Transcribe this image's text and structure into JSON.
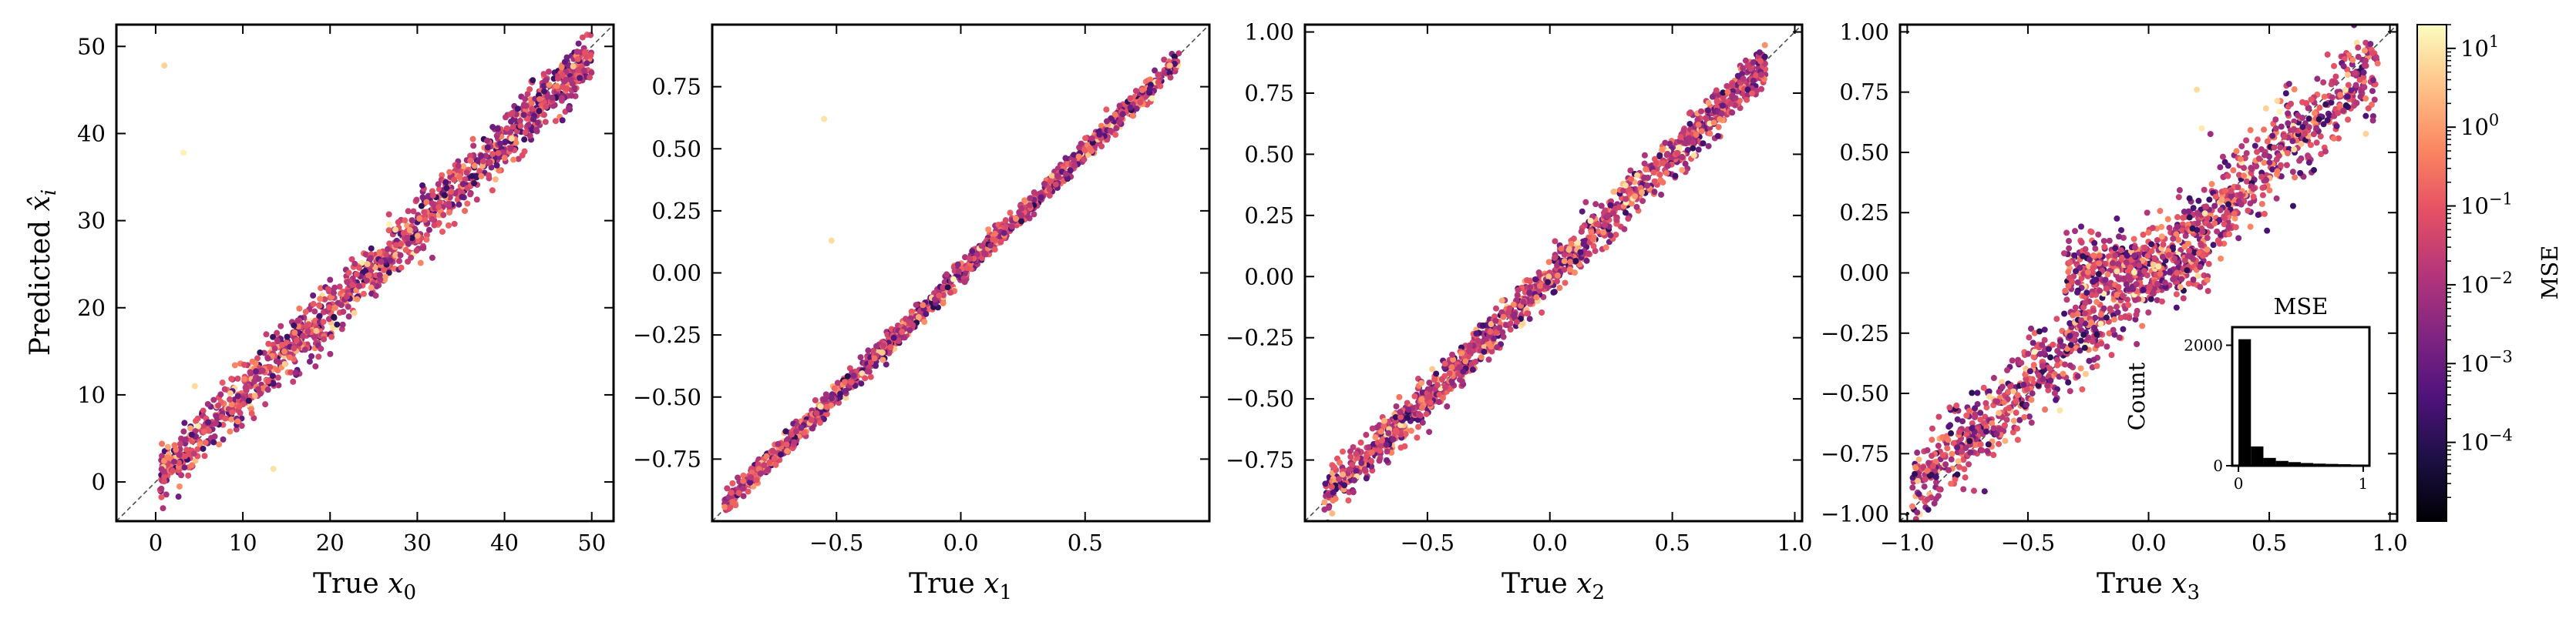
{
  "chart_data": [
    {
      "type": "scatter",
      "panel": "x0",
      "xlabel": "True",
      "xlabel_var": "x",
      "xlabel_sub": "0",
      "ylabel": "Predicted",
      "ylabel_var": "x̂",
      "ylabel_sub": "i",
      "xlim": [
        -4.5,
        52.5
      ],
      "ylim": [
        -4.5,
        52.5
      ],
      "xticks": [
        0,
        10,
        20,
        30,
        40,
        50
      ],
      "xtick_labels": [
        "0",
        "10",
        "20",
        "30",
        "40",
        "50"
      ],
      "yticks": [
        0,
        10,
        20,
        30,
        40,
        50
      ],
      "ytick_labels": [
        "0",
        "10",
        "20",
        "30",
        "40",
        "50"
      ],
      "identity_line": true,
      "trend": {
        "x_range": [
          0.5,
          50
        ],
        "slope": 0.97,
        "intercept": 0.3,
        "spread": 1.6,
        "n_points": 1300
      },
      "outliers": [
        {
          "x": 1.0,
          "y": 47.8
        },
        {
          "x": 3.2,
          "y": 37.8
        },
        {
          "x": 13.5,
          "y": 1.5
        },
        {
          "x": 4.5,
          "y": 11.0
        }
      ]
    },
    {
      "type": "scatter",
      "panel": "x1",
      "xlabel": "True",
      "xlabel_var": "x",
      "xlabel_sub": "1",
      "xlim": [
        -1.0,
        1.0
      ],
      "ylim": [
        -1.0,
        1.0
      ],
      "xticks": [
        -0.5,
        0.0,
        0.5
      ],
      "xtick_labels": [
        "−0.5",
        "0.0",
        "0.5"
      ],
      "yticks": [
        -0.75,
        -0.5,
        -0.25,
        0.0,
        0.25,
        0.5,
        0.75
      ],
      "ytick_labels": [
        "−0.75",
        "−0.50",
        "−0.25",
        "0.00",
        "0.25",
        "0.50",
        "0.75"
      ],
      "identity_line": true,
      "trend": {
        "x_range": [
          -0.95,
          0.88
        ],
        "slope": 0.98,
        "intercept": 0.0,
        "spread": 0.022,
        "n_points": 1300
      },
      "outliers": [
        {
          "x": -0.55,
          "y": 0.62
        },
        {
          "x": -0.52,
          "y": 0.13
        }
      ]
    },
    {
      "type": "scatter",
      "panel": "x2",
      "xlabel": "True",
      "xlabel_var": "x",
      "xlabel_sub": "2",
      "xlim": [
        -1.0,
        1.03
      ],
      "ylim": [
        -1.0,
        1.03
      ],
      "xticks": [
        -0.5,
        0.0,
        0.5,
        1.0
      ],
      "xtick_labels": [
        "−0.5",
        "0.0",
        "0.5",
        "1.0"
      ],
      "yticks": [
        -0.75,
        -0.5,
        -0.25,
        0.0,
        0.25,
        0.5,
        0.75,
        1.0
      ],
      "ytick_labels": [
        "−0.75",
        "−0.50",
        "−0.25",
        "0.00",
        "0.25",
        "0.50",
        "0.75",
        "1.00"
      ],
      "identity_line": true,
      "trend": {
        "x_range": [
          -0.92,
          0.88
        ],
        "slope": 0.98,
        "intercept": 0.0,
        "spread": 0.045,
        "n_points": 1300
      },
      "outliers": []
    },
    {
      "type": "scatter",
      "panel": "x3",
      "xlabel": "True",
      "xlabel_var": "x",
      "xlabel_sub": "3",
      "xlim": [
        -1.03,
        1.03
      ],
      "ylim": [
        -1.03,
        1.03
      ],
      "xticks": [
        -1.0,
        -0.5,
        0.0,
        0.5,
        1.0
      ],
      "xtick_labels": [
        "−1.0",
        "−0.5",
        "0.0",
        "0.5",
        "1.0"
      ],
      "yticks": [
        -1.0,
        -0.75,
        -0.5,
        -0.25,
        0.0,
        0.25,
        0.5,
        0.75,
        1.0
      ],
      "ytick_labels": [
        "−1.00",
        "−0.75",
        "−0.50",
        "−0.25",
        "0.00",
        "0.25",
        "0.50",
        "0.75",
        "1.00"
      ],
      "identity_line": true,
      "trend": {
        "x_range": [
          -0.98,
          0.95
        ],
        "slope": 0.92,
        "intercept": 0.0,
        "spread": 0.09,
        "n_points": 1300
      },
      "bulge": {
        "x_range": [
          -0.35,
          0.25
        ],
        "y_center": 0.03,
        "spread": 0.07,
        "n_points": 350
      },
      "outliers": [
        {
          "x": 0.2,
          "y": 0.76
        },
        {
          "x": 0.22,
          "y": 0.6
        }
      ],
      "inset": {
        "type": "bar",
        "xlabel": "MSE",
        "ylabel": "Count",
        "xticks": [
          0,
          1
        ],
        "xtick_labels": [
          "0",
          "1"
        ],
        "yticks": [
          0,
          2000
        ],
        "ytick_labels": [
          "0",
          "2000"
        ],
        "xlim": [
          -0.05,
          1.05
        ],
        "ylim": [
          0,
          2300
        ],
        "bin_width": 0.1,
        "bin_starts": [
          0.0,
          0.1,
          0.2,
          0.3,
          0.4,
          0.5,
          0.6,
          0.7,
          0.8,
          0.9
        ],
        "values": [
          2100,
          320,
          130,
          80,
          60,
          45,
          35,
          30,
          25,
          20
        ]
      }
    }
  ],
  "colorbar": {
    "label": "MSE",
    "scale": "log",
    "range": [
      1e-05,
      20
    ],
    "ticks": [
      0.0001,
      0.001,
      0.01,
      0.1,
      1,
      10
    ],
    "tick_base": "10",
    "tick_exponents": [
      "−4",
      "−3",
      "−2",
      "−1",
      "0",
      "1"
    ],
    "colormap": "magma",
    "colors": [
      "#000004",
      "#1c1044",
      "#4f127b",
      "#812581",
      "#b5367a",
      "#e55064",
      "#fb8761",
      "#fec287",
      "#fcfdbf"
    ]
  }
}
